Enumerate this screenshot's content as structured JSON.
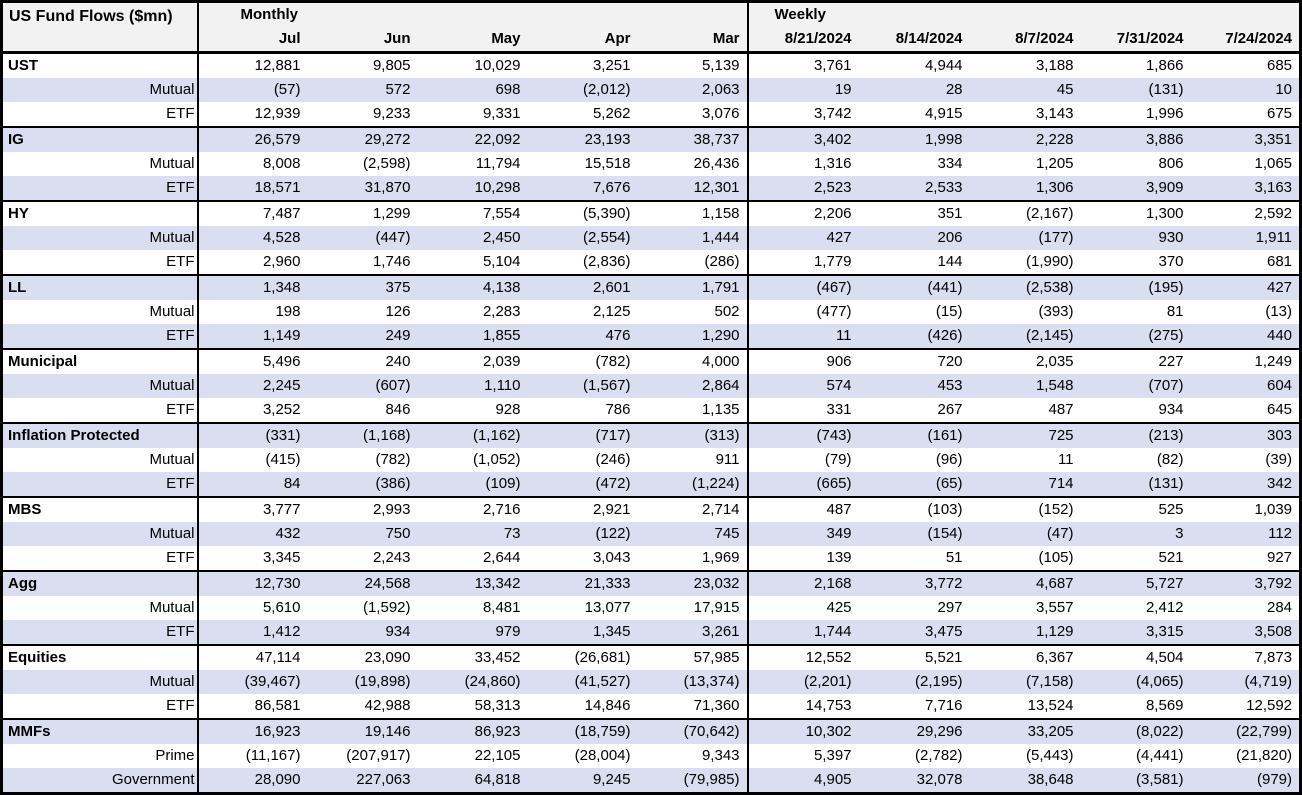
{
  "title": "US Fund Flows ($mn)",
  "header": {
    "monthly_label": "Monthly",
    "weekly_label": "Weekly",
    "monthly_columns": [
      "Jul",
      "Jun",
      "May",
      "Apr",
      "Mar"
    ],
    "weekly_columns": [
      "8/21/2024",
      "8/14/2024",
      "8/7/2024",
      "7/31/2024",
      "7/24/2024"
    ]
  },
  "colors": {
    "stripe_row": "#d9dff0",
    "header_bg": "#f2f2f2",
    "border": "#000000",
    "text": "#000000"
  },
  "chart_data": {
    "type": "table",
    "title": "US Fund Flows ($mn)",
    "column_groups": [
      "Monthly",
      "Weekly"
    ],
    "columns": [
      "Jul",
      "Jun",
      "May",
      "Apr",
      "Mar",
      "8/21/2024",
      "8/14/2024",
      "8/7/2024",
      "7/31/2024",
      "7/24/2024"
    ],
    "negative_format": "parentheses",
    "sections": [
      {
        "name": "UST",
        "rows": [
          {
            "label": "UST",
            "style": "section",
            "values": [
              "12,881",
              "9,805",
              "10,029",
              "3,251",
              "5,139",
              "3,761",
              "4,944",
              "3,188",
              "1,866",
              "685"
            ]
          },
          {
            "label": "Mutual",
            "style": "sub",
            "values": [
              "(57)",
              "572",
              "698",
              "(2,012)",
              "2,063",
              "19",
              "28",
              "45",
              "(131)",
              "10"
            ]
          },
          {
            "label": "ETF",
            "style": "sub",
            "values": [
              "12,939",
              "9,233",
              "9,331",
              "5,262",
              "3,076",
              "3,742",
              "4,915",
              "3,143",
              "1,996",
              "675"
            ]
          }
        ]
      },
      {
        "name": "IG",
        "rows": [
          {
            "label": "IG",
            "style": "section",
            "values": [
              "26,579",
              "29,272",
              "22,092",
              "23,193",
              "38,737",
              "3,402",
              "1,998",
              "2,228",
              "3,886",
              "3,351"
            ]
          },
          {
            "label": "Mutual",
            "style": "sub",
            "values": [
              "8,008",
              "(2,598)",
              "11,794",
              "15,518",
              "26,436",
              "1,316",
              "334",
              "1,205",
              "806",
              "1,065"
            ]
          },
          {
            "label": "ETF",
            "style": "sub",
            "values": [
              "18,571",
              "31,870",
              "10,298",
              "7,676",
              "12,301",
              "2,523",
              "2,533",
              "1,306",
              "3,909",
              "3,163"
            ]
          }
        ]
      },
      {
        "name": "HY",
        "rows": [
          {
            "label": "HY",
            "style": "section",
            "values": [
              "7,487",
              "1,299",
              "7,554",
              "(5,390)",
              "1,158",
              "2,206",
              "351",
              "(2,167)",
              "1,300",
              "2,592"
            ]
          },
          {
            "label": "Mutual",
            "style": "sub",
            "values": [
              "4,528",
              "(447)",
              "2,450",
              "(2,554)",
              "1,444",
              "427",
              "206",
              "(177)",
              "930",
              "1,911"
            ]
          },
          {
            "label": "ETF",
            "style": "sub",
            "values": [
              "2,960",
              "1,746",
              "5,104",
              "(2,836)",
              "(286)",
              "1,779",
              "144",
              "(1,990)",
              "370",
              "681"
            ]
          }
        ]
      },
      {
        "name": "LL",
        "rows": [
          {
            "label": "LL",
            "style": "section",
            "values": [
              "1,348",
              "375",
              "4,138",
              "2,601",
              "1,791",
              "(467)",
              "(441)",
              "(2,538)",
              "(195)",
              "427"
            ]
          },
          {
            "label": "Mutual",
            "style": "sub",
            "values": [
              "198",
              "126",
              "2,283",
              "2,125",
              "502",
              "(477)",
              "(15)",
              "(393)",
              "81",
              "(13)"
            ]
          },
          {
            "label": "ETF",
            "style": "sub",
            "values": [
              "1,149",
              "249",
              "1,855",
              "476",
              "1,290",
              "11",
              "(426)",
              "(2,145)",
              "(275)",
              "440"
            ]
          }
        ]
      },
      {
        "name": "Municipal",
        "rows": [
          {
            "label": "Municipal",
            "style": "section",
            "values": [
              "5,496",
              "240",
              "2,039",
              "(782)",
              "4,000",
              "906",
              "720",
              "2,035",
              "227",
              "1,249"
            ]
          },
          {
            "label": "Mutual",
            "style": "sub",
            "values": [
              "2,245",
              "(607)",
              "1,110",
              "(1,567)",
              "2,864",
              "574",
              "453",
              "1,548",
              "(707)",
              "604"
            ]
          },
          {
            "label": "ETF",
            "style": "sub",
            "values": [
              "3,252",
              "846",
              "928",
              "786",
              "1,135",
              "331",
              "267",
              "487",
              "934",
              "645"
            ]
          }
        ]
      },
      {
        "name": "Inflation Protected",
        "rows": [
          {
            "label": "Inflation Protected",
            "style": "section",
            "values": [
              "(331)",
              "(1,168)",
              "(1,162)",
              "(717)",
              "(313)",
              "(743)",
              "(161)",
              "725",
              "(213)",
              "303"
            ]
          },
          {
            "label": "Mutual",
            "style": "sub",
            "values": [
              "(415)",
              "(782)",
              "(1,052)",
              "(246)",
              "911",
              "(79)",
              "(96)",
              "11",
              "(82)",
              "(39)"
            ]
          },
          {
            "label": "ETF",
            "style": "sub",
            "values": [
              "84",
              "(386)",
              "(109)",
              "(472)",
              "(1,224)",
              "(665)",
              "(65)",
              "714",
              "(131)",
              "342"
            ]
          }
        ]
      },
      {
        "name": "MBS",
        "rows": [
          {
            "label": "MBS",
            "style": "section",
            "values": [
              "3,777",
              "2,993",
              "2,716",
              "2,921",
              "2,714",
              "487",
              "(103)",
              "(152)",
              "525",
              "1,039"
            ]
          },
          {
            "label": "Mutual",
            "style": "sub",
            "values": [
              "432",
              "750",
              "73",
              "(122)",
              "745",
              "349",
              "(154)",
              "(47)",
              "3",
              "112"
            ]
          },
          {
            "label": "ETF",
            "style": "sub",
            "values": [
              "3,345",
              "2,243",
              "2,644",
              "3,043",
              "1,969",
              "139",
              "51",
              "(105)",
              "521",
              "927"
            ]
          }
        ]
      },
      {
        "name": "Agg",
        "rows": [
          {
            "label": "Agg",
            "style": "section",
            "values": [
              "12,730",
              "24,568",
              "13,342",
              "21,333",
              "23,032",
              "2,168",
              "3,772",
              "4,687",
              "5,727",
              "3,792"
            ]
          },
          {
            "label": "Mutual",
            "style": "sub",
            "values": [
              "5,610",
              "(1,592)",
              "8,481",
              "13,077",
              "17,915",
              "425",
              "297",
              "3,557",
              "2,412",
              "284"
            ]
          },
          {
            "label": "ETF",
            "style": "sub",
            "values": [
              "1,412",
              "934",
              "979",
              "1,345",
              "3,261",
              "1,744",
              "3,475",
              "1,129",
              "3,315",
              "3,508"
            ]
          }
        ]
      },
      {
        "name": "Equities",
        "rows": [
          {
            "label": "Equities",
            "style": "section",
            "values": [
              "47,114",
              "23,090",
              "33,452",
              "(26,681)",
              "57,985",
              "12,552",
              "5,521",
              "6,367",
              "4,504",
              "7,873"
            ]
          },
          {
            "label": "Mutual",
            "style": "sub",
            "values": [
              "(39,467)",
              "(19,898)",
              "(24,860)",
              "(41,527)",
              "(13,374)",
              "(2,201)",
              "(2,195)",
              "(7,158)",
              "(4,065)",
              "(4,719)"
            ]
          },
          {
            "label": "ETF",
            "style": "sub",
            "values": [
              "86,581",
              "42,988",
              "58,313",
              "14,846",
              "71,360",
              "14,753",
              "7,716",
              "13,524",
              "8,569",
              "12,592"
            ]
          }
        ]
      },
      {
        "name": "MMFs",
        "rows": [
          {
            "label": "MMFs",
            "style": "section",
            "values": [
              "16,923",
              "19,146",
              "86,923",
              "(18,759)",
              "(70,642)",
              "10,302",
              "29,296",
              "33,205",
              "(8,022)",
              "(22,799)"
            ]
          },
          {
            "label": "Prime",
            "style": "sub",
            "values": [
              "(11,167)",
              "(207,917)",
              "22,105",
              "(28,004)",
              "9,343",
              "5,397",
              "(2,782)",
              "(5,443)",
              "(4,441)",
              "(21,820)"
            ]
          },
          {
            "label": "Government",
            "style": "sub",
            "values": [
              "28,090",
              "227,063",
              "64,818",
              "9,245",
              "(79,985)",
              "4,905",
              "32,078",
              "38,648",
              "(3,581)",
              "(979)"
            ]
          }
        ]
      }
    ]
  }
}
